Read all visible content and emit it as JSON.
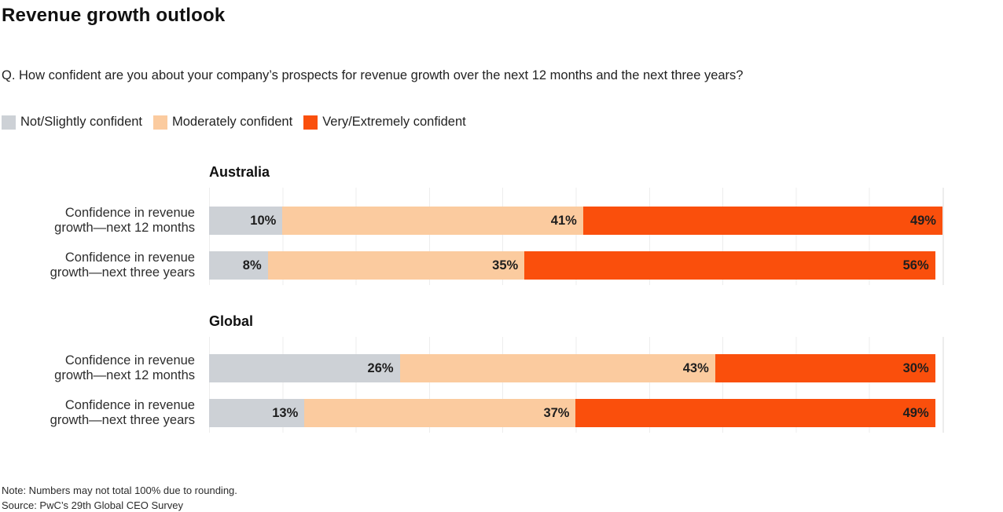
{
  "title": "Revenue growth outlook",
  "question": "Q. How confident are you about your company’s prospects for revenue growth over the next 12 months and the next three years?",
  "legend": [
    {
      "label": "Not/Slightly confident",
      "color": "#cdd1d6"
    },
    {
      "label": "Moderately confident",
      "color": "#fbcb9f"
    },
    {
      "label": "Very/Extremely confident",
      "color": "#fa4f0c"
    }
  ],
  "chart_data": {
    "type": "bar",
    "orientation": "horizontal",
    "stacked": true,
    "unit": "%",
    "xlim": [
      0,
      100
    ],
    "grid": true,
    "legend_position": "top",
    "series_names": [
      "Not/Slightly confident",
      "Moderately confident",
      "Very/Extremely confident"
    ],
    "series_colors": [
      "#cdd1d6",
      "#fbcb9f",
      "#fa4f0c"
    ],
    "groups": [
      {
        "title": "Australia",
        "rows": [
          {
            "label": "Confidence in revenue growth—next 12 months",
            "values": [
              10,
              41,
              49
            ]
          },
          {
            "label": "Confidence in revenue growth—next three years",
            "values": [
              8,
              35,
              56
            ]
          }
        ]
      },
      {
        "title": "Global",
        "rows": [
          {
            "label": "Confidence in revenue growth—next 12 months",
            "values": [
              26,
              43,
              30
            ]
          },
          {
            "label": "Confidence in revenue growth—next three years",
            "values": [
              13,
              37,
              49
            ]
          }
        ]
      }
    ]
  },
  "notes": {
    "note": "Note: Numbers may not total 100% due to rounding.",
    "source": "Source: PwC’s 29th Global CEO Survey"
  }
}
